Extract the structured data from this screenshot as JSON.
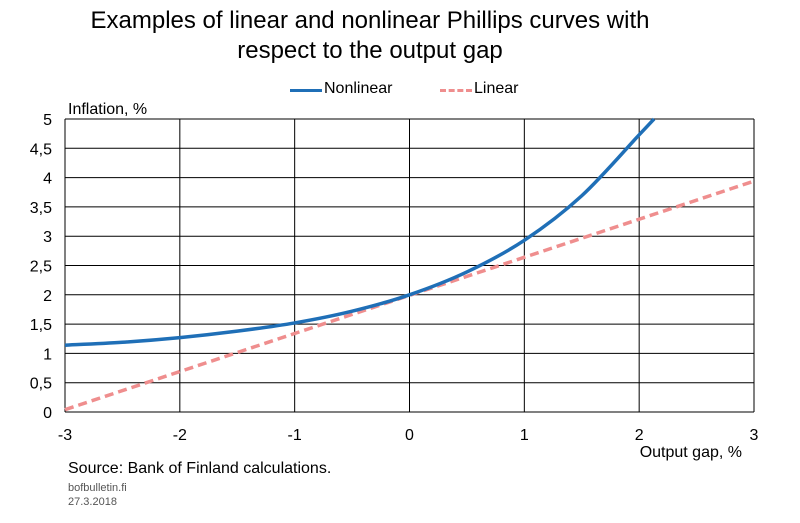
{
  "title_lines": [
    "Examples of linear and nonlinear Phillips curves with",
    "respect to the output gap"
  ],
  "legend": [
    {
      "label": "Nonlinear",
      "color": "#1F6FB7",
      "style": "solid"
    },
    {
      "label": "Linear",
      "color": "#EF8E8E",
      "style": "dashed"
    }
  ],
  "source": "Source: Bank of Finland calculations.",
  "site": "bofbulletin.fi",
  "date": "27.3.2018",
  "chart_data": {
    "type": "line",
    "xlabel": "Output gap, %",
    "ylabel": "Inflation, %",
    "xlim": [
      -3,
      3
    ],
    "ylim": [
      0,
      5
    ],
    "x_ticks": [
      -3,
      -2,
      -1,
      0,
      1,
      2,
      3
    ],
    "x_tick_labels": [
      "-3",
      "-2",
      "-1",
      "0",
      "1",
      "2",
      "3"
    ],
    "y_ticks": [
      0,
      0.5,
      1,
      1.5,
      2,
      2.5,
      3,
      3.5,
      4,
      4.5,
      5
    ],
    "y_tick_labels": [
      "0",
      "0,5",
      "1",
      "1,5",
      "2",
      "2,5",
      "3",
      "3,5",
      "4",
      "4,5",
      "5"
    ],
    "grid": true,
    "legend_position": "top",
    "series": [
      {
        "name": "Nonlinear",
        "color": "#1F6FB7",
        "style": "solid",
        "x": [
          -3,
          -2.5,
          -2,
          -1.5,
          -1,
          -0.5,
          0,
          0.5,
          1,
          1.5,
          2,
          2.13
        ],
        "y": [
          1.14,
          1.19,
          1.27,
          1.38,
          1.52,
          1.72,
          2.0,
          2.39,
          2.93,
          3.69,
          4.73,
          5.0
        ]
      },
      {
        "name": "Linear",
        "color": "#EF8E8E",
        "style": "dashed",
        "x": [
          -3,
          3
        ],
        "y": [
          0.04,
          3.94
        ]
      }
    ]
  }
}
